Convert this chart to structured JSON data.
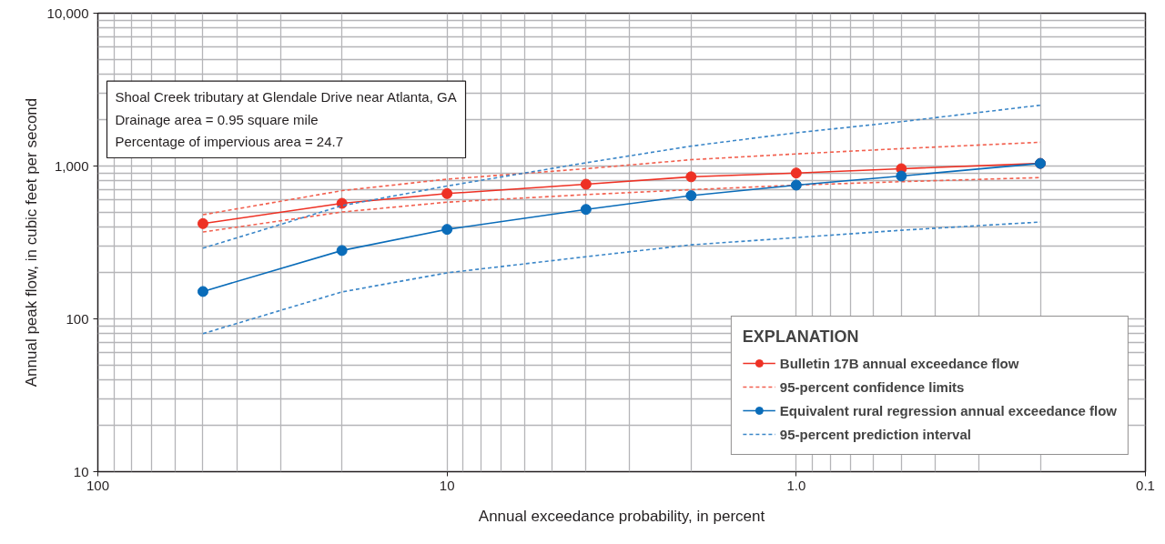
{
  "chart_data": {
    "type": "line",
    "xlabel": "Annual exceedance probability, in percent",
    "ylabel": "Annual peak flow, in cubic feet per second",
    "x": [
      50,
      20,
      10,
      4,
      2,
      1,
      0.5,
      0.2
    ],
    "series": [
      {
        "name": "Bulletin 17B annual exceedance flow",
        "color": "#ee3124",
        "marker": "circle",
        "line_style": "solid",
        "values": [
          420,
          570,
          660,
          760,
          850,
          900,
          960,
          1040
        ]
      },
      {
        "name": "95-percent confidence limits",
        "color": "#f2604f",
        "marker": "none",
        "line_style": "dashed",
        "values": [
          480,
          690,
          820,
          960,
          1100,
          1200,
          1300,
          1430
        ]
      },
      {
        "color": "#f2604f",
        "marker": "none",
        "line_style": "dashed",
        "values": [
          370,
          500,
          580,
          650,
          700,
          750,
          790,
          840
        ]
      },
      {
        "name": "Equivalent rural regression annual exceedance flow",
        "color": "#0a6cb9",
        "marker": "circle",
        "line_style": "solid",
        "values": [
          151,
          280,
          385,
          520,
          640,
          750,
          860,
          1040
        ]
      },
      {
        "name": "95-percent prediction interval",
        "color": "#3a86c8",
        "marker": "none",
        "line_style": "dashed",
        "values": [
          290,
          550,
          740,
          1050,
          1350,
          1650,
          1950,
          2500
        ]
      },
      {
        "color": "#3a86c8",
        "marker": "none",
        "line_style": "dashed",
        "values": [
          80,
          150,
          200,
          255,
          305,
          340,
          380,
          430
        ]
      }
    ],
    "log": "xy",
    "xlim": [
      100,
      0.1
    ],
    "xticks": [
      100,
      10,
      {
        "value": 1,
        "label": "1.0"
      },
      0.1
    ],
    "ylim": [
      10,
      10000
    ],
    "yticks": [
      10,
      100,
      {
        "value": 1000,
        "label": "1,000"
      },
      {
        "value": 10000,
        "label": "10,000"
      }
    ],
    "grid": true,
    "legend": "bottom right",
    "legend_title": "EXPLANATION",
    "annotations": [
      "Shoal Creek tributary at Glendale Drive near Atlanta, GA",
      "Drainage area = 0.95 square mile",
      "Percentage of impervious area = 24.7"
    ]
  }
}
